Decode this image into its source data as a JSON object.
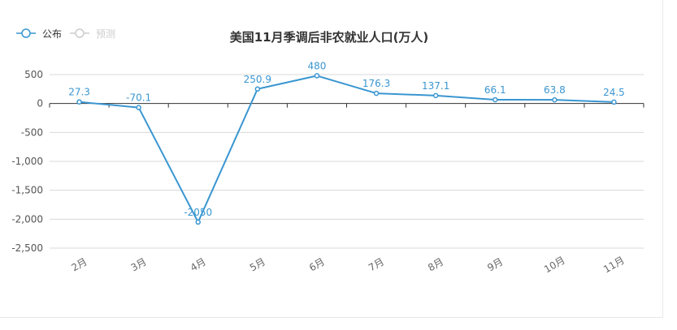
{
  "chart_data": {
    "type": "line",
    "title": "美国11月季调后非农就业人口(万人)",
    "legend": [
      "公布",
      "预测"
    ],
    "categories": [
      "2月",
      "3月",
      "4月",
      "5月",
      "6月",
      "7月",
      "8月",
      "9月",
      "10月",
      "11月"
    ],
    "series": [
      {
        "name": "公布",
        "values": [
          27.3,
          -70.1,
          -2050,
          250.9,
          480,
          176.3,
          137.1,
          66.1,
          63.8,
          24.5
        ],
        "labels": [
          "27.3",
          "-70.1",
          "-2050",
          "250.9",
          "480",
          "176.3",
          "137.1",
          "66.1",
          "63.8",
          "24.5"
        ]
      }
    ],
    "yticks": [
      "500",
      "0",
      "-500",
      "-1,000",
      "-1,500",
      "-2,000",
      "-2,500"
    ],
    "ylim": [
      -2500,
      500
    ],
    "grid": true,
    "legend_position": "top-left",
    "colors": {
      "series": "#3a96d1",
      "inactive": "#cccccc",
      "grid": "#d8d8d8",
      "axis": "#333333",
      "title": "#333333"
    }
  }
}
